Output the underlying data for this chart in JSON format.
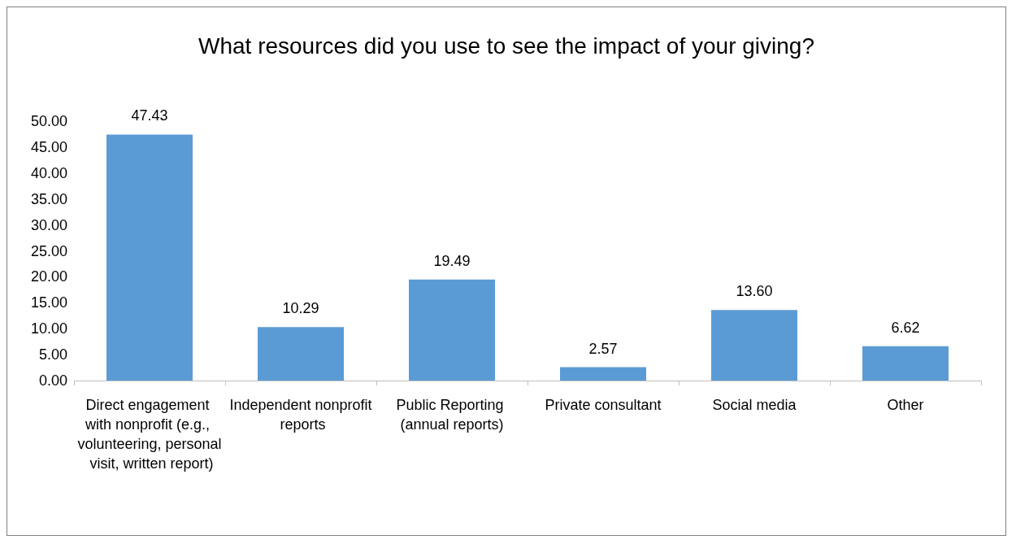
{
  "chart_data": {
    "type": "bar",
    "title": "What resources did you use to see the impact of your giving?",
    "categories": [
      "Direct engagement with nonprofit (e.g., volunteering, personal visit, written report)",
      "Independent nonprofit reports",
      "Public Reporting (annual reports)",
      "Private consultant",
      "Social media",
      "Other"
    ],
    "values": [
      47.43,
      10.29,
      19.49,
      2.57,
      13.6,
      6.62
    ],
    "value_labels": [
      "47.43",
      "10.29",
      "19.49",
      "2.57",
      "13.60",
      "6.62"
    ],
    "color": "#5b9bd5",
    "ylim": [
      0,
      50
    ],
    "yticks": [
      {
        "value": 0,
        "label": "0.00"
      },
      {
        "value": 5,
        "label": "5.00"
      },
      {
        "value": 10,
        "label": "10.00"
      },
      {
        "value": 15,
        "label": "15.00"
      },
      {
        "value": 20,
        "label": "20.00"
      },
      {
        "value": 25,
        "label": "25.00"
      },
      {
        "value": 30,
        "label": "30.00"
      },
      {
        "value": 35,
        "label": "35.00"
      },
      {
        "value": 40,
        "label": "40.00"
      },
      {
        "value": 45,
        "label": "45.00"
      },
      {
        "value": 50,
        "label": "50.00"
      }
    ],
    "grid": false
  }
}
